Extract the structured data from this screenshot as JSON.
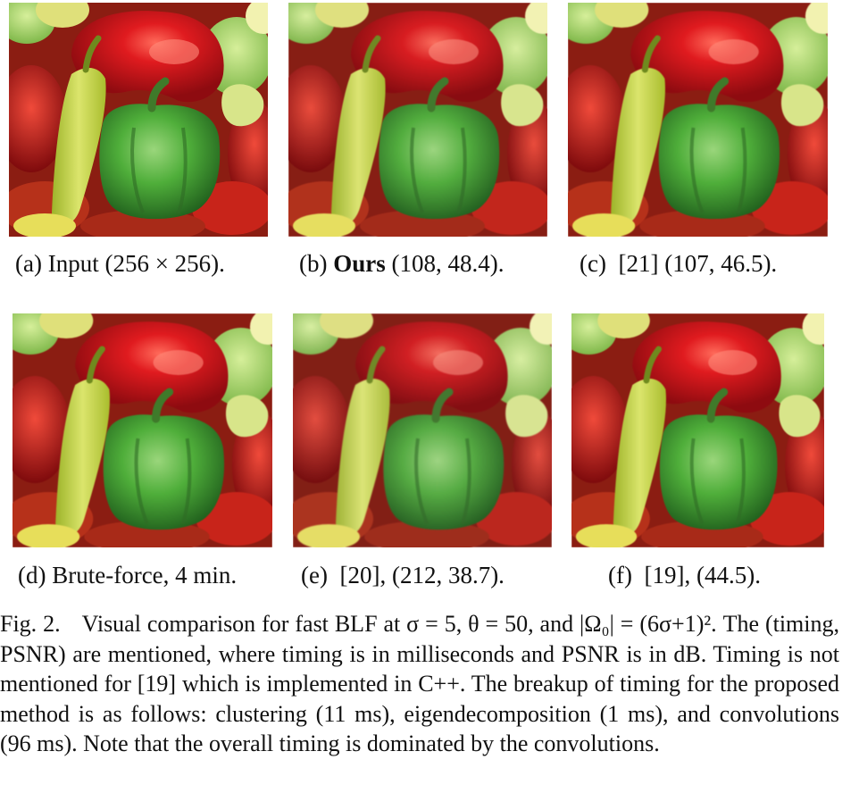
{
  "figure": {
    "panels": [
      {
        "id": "a",
        "prefix": "(a)",
        "name": "Input",
        "bold": false,
        "detail": "(256 × 256).",
        "image_kind": "peppers-input"
      },
      {
        "id": "b",
        "prefix": "(b)",
        "name": "Ours",
        "bold": true,
        "detail": "(108, 48.4).",
        "image_kind": "peppers-filtered"
      },
      {
        "id": "c",
        "prefix": "(c)",
        "name": "[21]",
        "bold": false,
        "detail": "(107, 46.5).",
        "image_kind": "peppers-filtered"
      },
      {
        "id": "d",
        "prefix": "(d)",
        "name": "Brute-force,",
        "bold": false,
        "detail": "4 min.",
        "image_kind": "peppers-filtered"
      },
      {
        "id": "e",
        "prefix": "(e)",
        "name": "[20],",
        "bold": false,
        "detail": "(212, 38.7).",
        "image_kind": "peppers-filtered"
      },
      {
        "id": "f",
        "prefix": "(f)",
        "name": "[19],",
        "bold": false,
        "detail": "(44.5).",
        "image_kind": "peppers-filtered"
      }
    ],
    "caption": {
      "number": "Fig. 2.",
      "text": "Visual comparison for fast BLF at σ = 5, θ = 50, and |Ω₀| = (6σ+1)². The (timing, PSNR) are mentioned, where timing is in milliseconds and PSNR is in dB. Timing is not mentioned for [19] which is implemented in C++. The breakup of timing for the proposed method is as follows: clustering (11 ms), eigendecomposition (1 ms), and convolutions (96 ms). Note that the overall timing is dominated by the convolutions."
    }
  },
  "colors": {
    "background": "#ffffff",
    "red_pepper": "#d4161a",
    "green_pepper": "#4fae3a",
    "yellow_pepper": "#cdd94a",
    "text": "#111111"
  }
}
